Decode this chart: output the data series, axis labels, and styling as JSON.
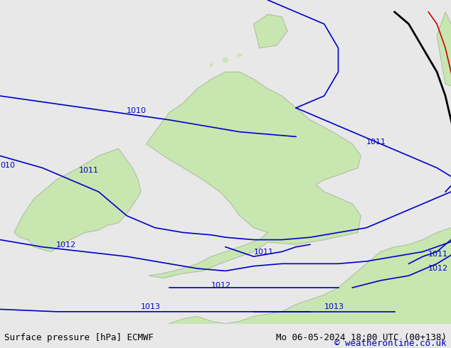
{
  "title_left": "Surface pressure [hPa] ECMWF",
  "title_right": "Mo 06-05-2024 18:00 UTC (00+138)",
  "copyright": "© weatheronline.co.uk",
  "bg_color": "#e8e8e8",
  "land_color": "#c8e6b0",
  "border_color": "#aaaaaa",
  "isobar_color_blue": "#0000cc",
  "isobar_color_black": "#000000",
  "isobar_color_red": "#cc0000",
  "label_fontsize": 9,
  "footer_fontsize": 9,
  "figsize": [
    6.34,
    4.9
  ],
  "dpi": 100
}
